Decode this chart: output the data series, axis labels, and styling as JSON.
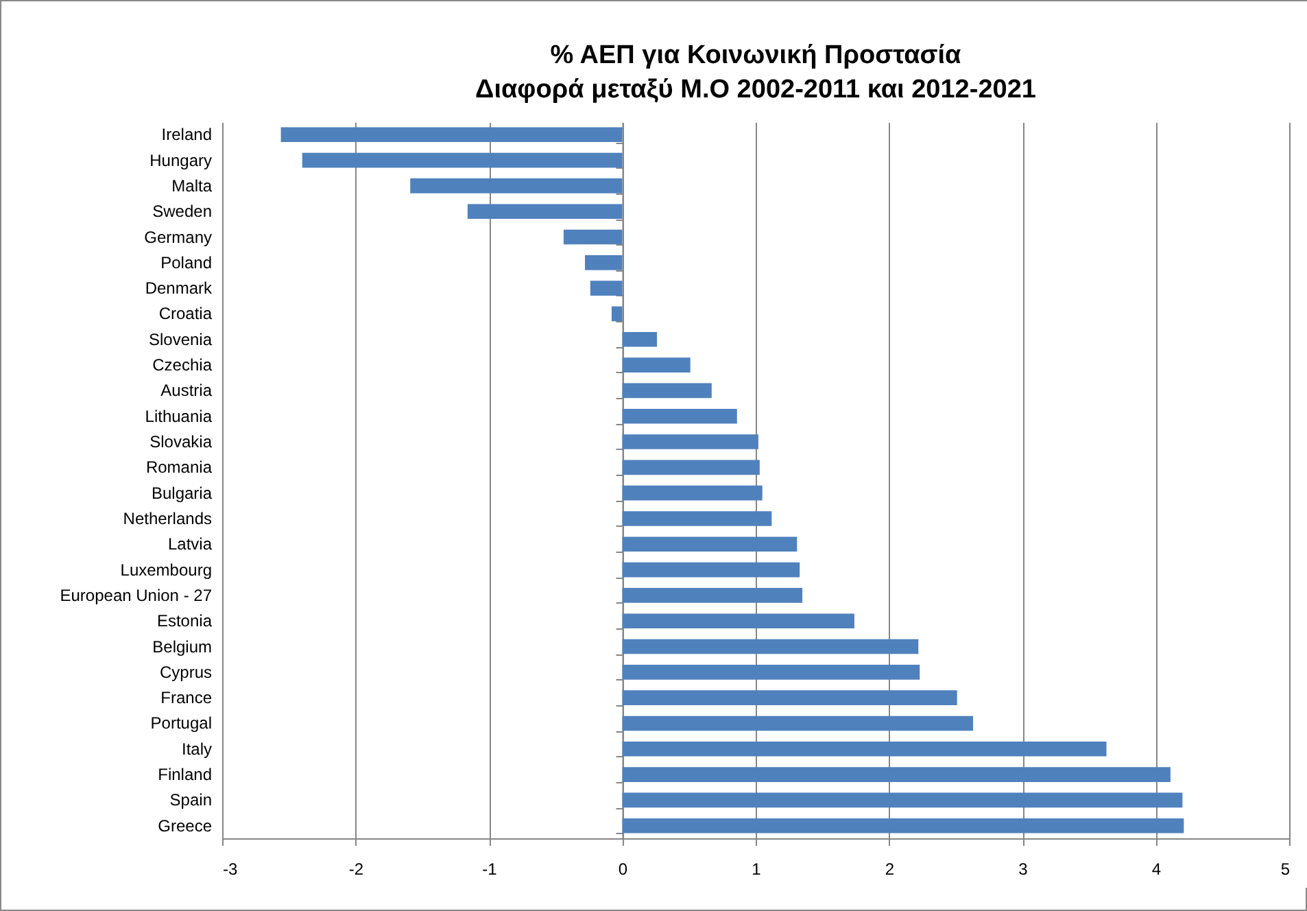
{
  "chart_data": {
    "type": "bar",
    "orientation": "horizontal",
    "title": "% ΑΕΠ για Κοινωνική Προστασία",
    "subtitle": "Διαφορά μεταξύ Μ.Ο 2002-2011 και 2012-2021",
    "categories": [
      "Ireland",
      "Hungary",
      "Malta",
      "Sweden",
      "Germany",
      "Poland",
      "Denmark",
      "Croatia",
      "Slovenia",
      "Czechia",
      "Austria",
      "Lithuania",
      "Slovakia",
      "Romania",
      "Bulgaria",
      "Netherlands",
      "Latvia",
      "Luxembourg",
      "European Union - 27",
      "Estonia",
      "Belgium",
      "Cyprus",
      "France",
      "Portugal",
      "Italy",
      "Finland",
      "Spain",
      "Greece"
    ],
    "values": [
      -2.56,
      -2.4,
      -1.59,
      -1.16,
      -0.44,
      -0.28,
      -0.24,
      -0.08,
      0.26,
      0.51,
      0.67,
      0.86,
      1.02,
      1.03,
      1.05,
      1.12,
      1.31,
      1.33,
      1.35,
      1.74,
      2.22,
      2.23,
      2.51,
      2.63,
      3.63,
      4.11,
      4.2,
      4.21
    ],
    "color": "#4f81bd",
    "xlim": [
      -3,
      5
    ],
    "xticks": [
      -3,
      -2,
      -1,
      0,
      1,
      2,
      3,
      4,
      5
    ],
    "grid": "x"
  }
}
